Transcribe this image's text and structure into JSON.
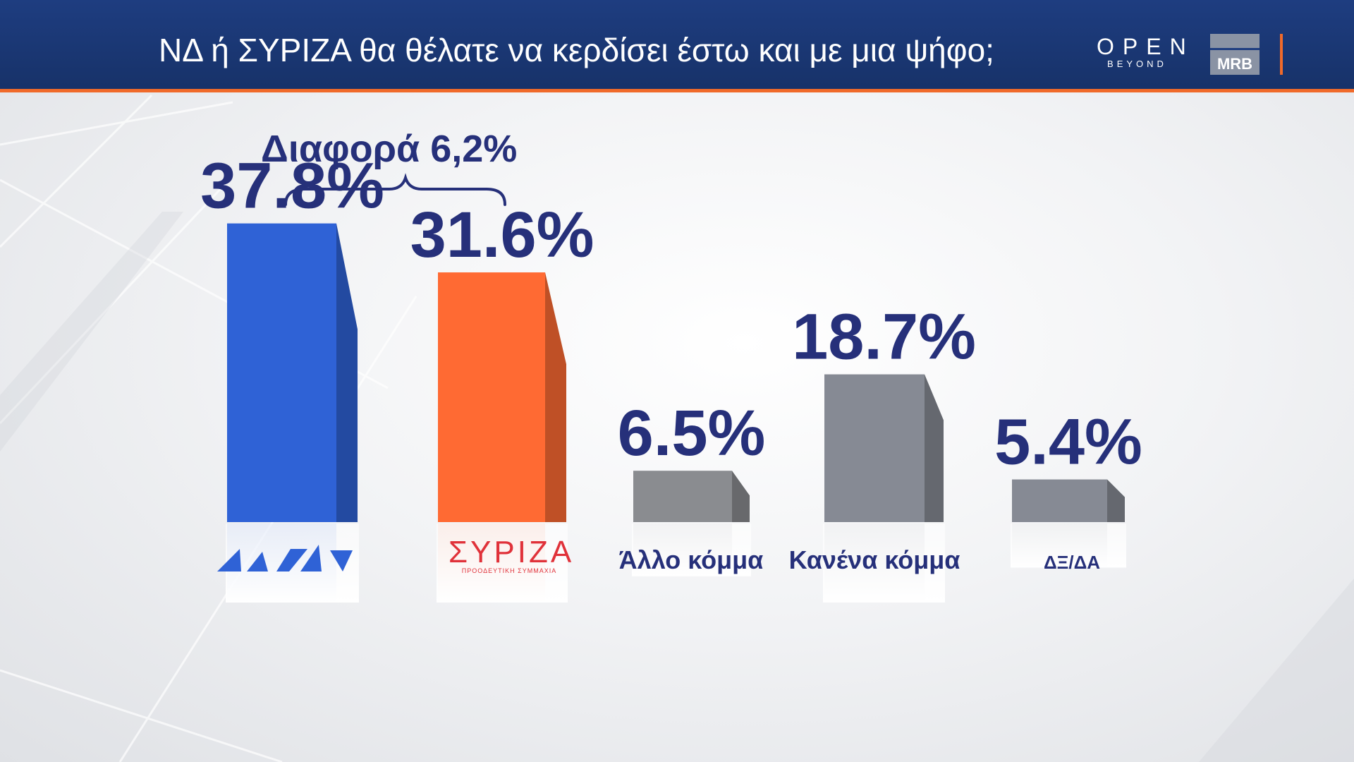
{
  "header": {
    "title": "ΝΔ  ή ΣΥΡΙΖΑ θα θέλατε να κερδίσει έστω και με μια ψήφο;",
    "logo_open": "OPEN",
    "logo_open_sub": "BEYOND",
    "logo_mrb": "MRB"
  },
  "annotation": {
    "difference_label": "Διαφορά 6,2%"
  },
  "colors": {
    "header_bg": "#1e3d80",
    "accent_orange": "#f06a2a",
    "label_navy": "#26307a"
  },
  "chart_data": {
    "type": "bar",
    "categories": [
      "ΝΔ",
      "ΣΥΡΙΖΑ",
      "Άλλο κόμμα",
      "Κανένα κόμμα",
      "ΔΞ/ΔΑ"
    ],
    "values": [
      37.8,
      31.6,
      6.5,
      18.7,
      5.4
    ],
    "value_labels": [
      "37.8%",
      "31.6%",
      "6.5%",
      "18.7%",
      "5.4%"
    ],
    "category_labels": [
      "",
      "",
      "Άλλο κόμμα",
      "Κανένα κόμμα",
      "ΔΞ/ΔΑ"
    ],
    "logo_labels": {
      "nd": "",
      "syriza": "ΣΥΡΙΖΑ",
      "syriza_sub": "ΠΡΟΟΔΕΥΤΙΚΗ ΣΥΜΜΑΧΙΑ"
    },
    "bar_colors": [
      "#2f62d6",
      "#ff6a33",
      "#8a8c90",
      "#868a94",
      "#868a94"
    ],
    "title": "",
    "xlabel": "",
    "ylabel": ""
  }
}
